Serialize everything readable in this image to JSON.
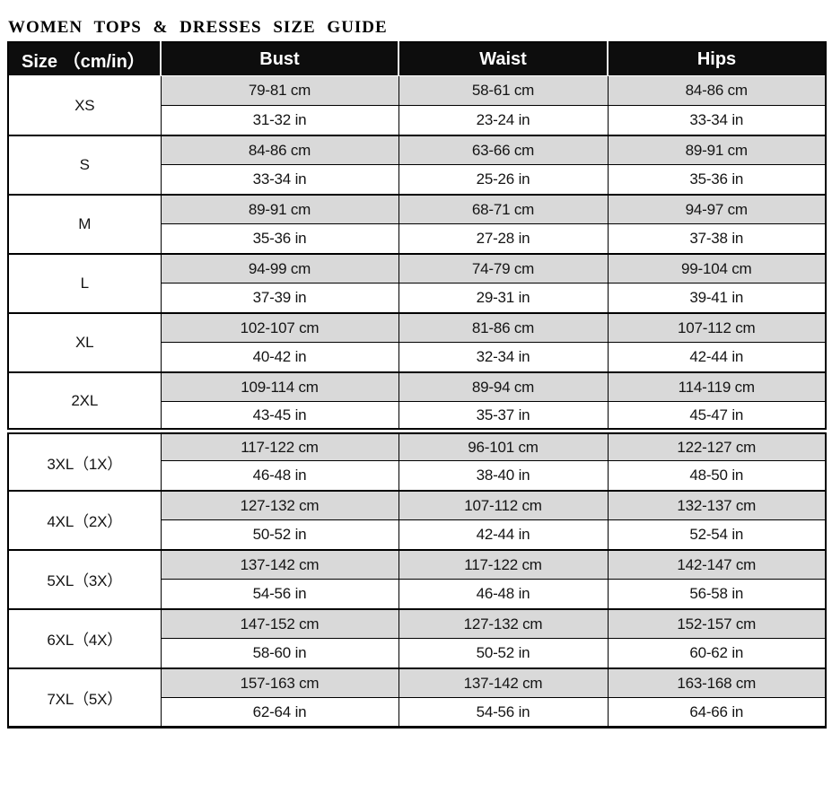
{
  "title": "WOMEN TOPS & DRESSES SIZE GUIDE",
  "columns": [
    "Size （cm/in）",
    "Bust",
    "Waist",
    "Hips"
  ],
  "sizes": [
    {
      "label": "XS",
      "section": "standard",
      "bust_cm": "79-81 cm",
      "waist_cm": "58-61 cm",
      "hips_cm": "84-86 cm",
      "bust_in": "31-32 in",
      "waist_in": "23-24 in",
      "hips_in": "33-34 in"
    },
    {
      "label": "S",
      "section": "standard",
      "bust_cm": "84-86 cm",
      "waist_cm": "63-66 cm",
      "hips_cm": "89-91 cm",
      "bust_in": "33-34 in",
      "waist_in": "25-26 in",
      "hips_in": "35-36 in"
    },
    {
      "label": "M",
      "section": "standard",
      "bust_cm": "89-91 cm",
      "waist_cm": "68-71 cm",
      "hips_cm": "94-97 cm",
      "bust_in": "35-36 in",
      "waist_in": "27-28 in",
      "hips_in": "37-38 in"
    },
    {
      "label": "L",
      "section": "standard",
      "bust_cm": "94-99 cm",
      "waist_cm": "74-79 cm",
      "hips_cm": "99-104 cm",
      "bust_in": "37-39 in",
      "waist_in": "29-31 in",
      "hips_in": "39-41 in"
    },
    {
      "label": "XL",
      "section": "standard",
      "bust_cm": "102-107 cm",
      "waist_cm": "81-86 cm",
      "hips_cm": "107-112 cm",
      "bust_in": "40-42 in",
      "waist_in": "32-34 in",
      "hips_in": "42-44 in"
    },
    {
      "label": "2XL",
      "section": "standard",
      "bust_cm": "109-114 cm",
      "waist_cm": "89-94 cm",
      "hips_cm": "114-119 cm",
      "bust_in": "43-45 in",
      "waist_in": "35-37 in",
      "hips_in": "45-47 in"
    },
    {
      "label": "3XL（1X）",
      "section": "plus",
      "bust_cm": "117-122 cm",
      "waist_cm": "96-101 cm",
      "hips_cm": "122-127 cm",
      "bust_in": "46-48 in",
      "waist_in": "38-40 in",
      "hips_in": "48-50 in"
    },
    {
      "label": "4XL（2X）",
      "section": "plus",
      "bust_cm": "127-132 cm",
      "waist_cm": "107-112 cm",
      "hips_cm": "132-137 cm",
      "bust_in": "50-52 in",
      "waist_in": "42-44 in",
      "hips_in": "52-54 in"
    },
    {
      "label": "5XL（3X）",
      "section": "plus",
      "bust_cm": "137-142 cm",
      "waist_cm": "117-122 cm",
      "hips_cm": "142-147 cm",
      "bust_in": "54-56 in",
      "waist_in": "46-48 in",
      "hips_in": "56-58 in"
    },
    {
      "label": "6XL（4X）",
      "section": "plus",
      "bust_cm": "147-152 cm",
      "waist_cm": "127-132 cm",
      "hips_cm": "152-157 cm",
      "bust_in": "58-60 in",
      "waist_in": "50-52 in",
      "hips_in": "60-62 in"
    },
    {
      "label": "7XL（5X）",
      "section": "plus",
      "bust_cm": "157-163 cm",
      "waist_cm": "137-142 cm",
      "hips_cm": "163-168 cm",
      "bust_in": "62-64 in",
      "waist_in": "54-56 in",
      "hips_in": "64-66 in"
    }
  ],
  "colors": {
    "header_bg": "#0d0d0d",
    "header_text": "#ffffff",
    "cm_row_bg": "#d9d9d9",
    "in_row_bg": "#ffffff",
    "border": "#000000",
    "header_divider": "#ededed"
  }
}
